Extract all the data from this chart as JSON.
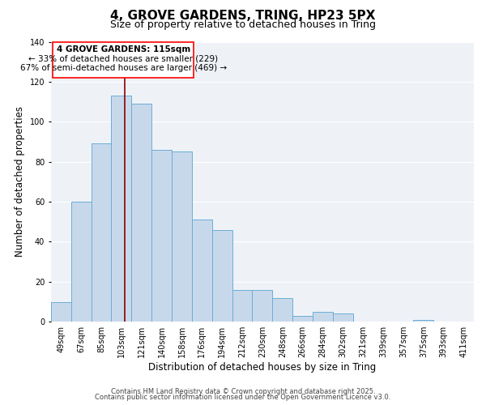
{
  "title": "4, GROVE GARDENS, TRING, HP23 5PX",
  "subtitle": "Size of property relative to detached houses in Tring",
  "xlabel": "Distribution of detached houses by size in Tring",
  "ylabel": "Number of detached properties",
  "bar_color": "#c8d8eb",
  "bar_edge_color": "#6aaed6",
  "background_color": "#eef2f7",
  "categories": [
    "49sqm",
    "67sqm",
    "85sqm",
    "103sqm",
    "121sqm",
    "140sqm",
    "158sqm",
    "176sqm",
    "194sqm",
    "212sqm",
    "230sqm",
    "248sqm",
    "266sqm",
    "284sqm",
    "302sqm",
    "321sqm",
    "339sqm",
    "357sqm",
    "375sqm",
    "393sqm",
    "411sqm"
  ],
  "values": [
    10,
    60,
    89,
    113,
    109,
    86,
    85,
    51,
    46,
    16,
    16,
    12,
    3,
    5,
    4,
    0,
    0,
    0,
    1,
    0,
    0
  ],
  "ylim": [
    0,
    140
  ],
  "yticks": [
    0,
    20,
    40,
    60,
    80,
    100,
    120,
    140
  ],
  "property_label": "4 GROVE GARDENS: 115sqm",
  "annotation_line1": "← 33% of detached houses are smaller (229)",
  "annotation_line2": "67% of semi-detached houses are larger (469) →",
  "footnote1": "Contains HM Land Registry data © Crown copyright and database right 2025.",
  "footnote2": "Contains public sector information licensed under the Open Government Licence v3.0.",
  "title_fontsize": 11,
  "subtitle_fontsize": 9,
  "axis_label_fontsize": 8.5,
  "tick_fontsize": 7,
  "annotation_fontsize": 7.5,
  "footnote_fontsize": 6
}
